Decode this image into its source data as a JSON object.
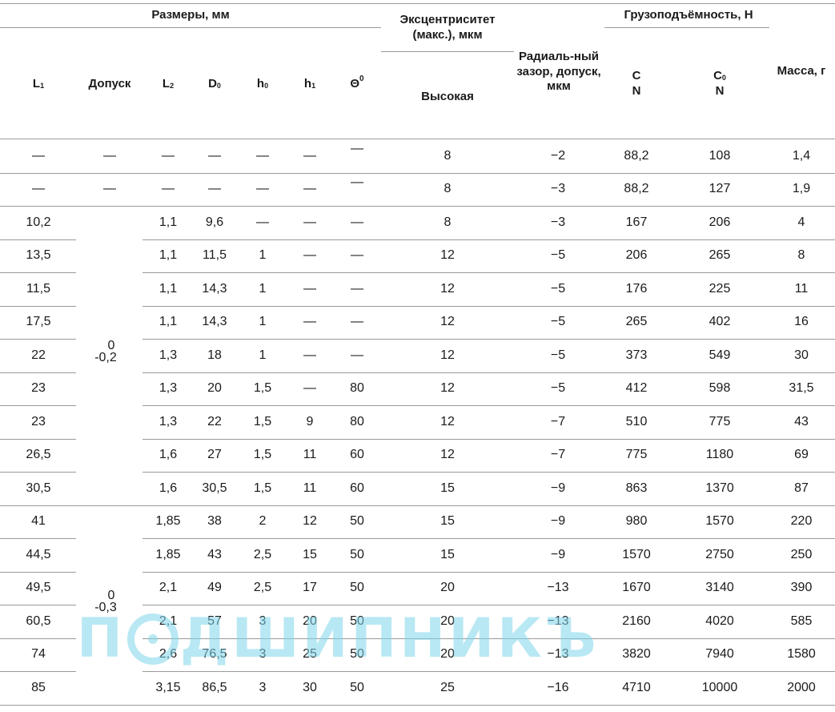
{
  "header": {
    "dimensions_group": "Размеры, мм",
    "eccentricity": "Эксцентриситет (макс.), мкм",
    "eccentricity_sub": "Высокая",
    "radial_clearance": "Радиаль-ный зазор, допуск, мкм",
    "load_group": "Грузоподъёмность, Н",
    "mass": "Масса, г",
    "cols": {
      "L1": {
        "base": "L",
        "sub": "1"
      },
      "tolerance": "Допуск",
      "L2": {
        "base": "L",
        "sub": "2"
      },
      "D0": {
        "base": "D",
        "sub": "0"
      },
      "h0": {
        "base": "h",
        "sub": "0"
      },
      "h1": {
        "base": "h",
        "sub": "1"
      },
      "theta": {
        "base": "Θ",
        "sup": "0"
      },
      "C": {
        "line1": "C",
        "line2": "N"
      },
      "C0": {
        "base": "C",
        "sub": "0",
        "line2": "N"
      }
    }
  },
  "tolerance_groups": [
    {
      "upper": "0",
      "lower": "-0,2"
    },
    {
      "upper": "0",
      "lower": "-0,3"
    }
  ],
  "rows": [
    {
      "L1": "—",
      "tol": "—",
      "L2": "—",
      "D0": "—",
      "h0": "—",
      "h1": "—",
      "theta": "—",
      "ecc": "8",
      "rad": "−2",
      "C": "88,2",
      "C0": "108",
      "mass": "1,4"
    },
    {
      "L1": "—",
      "tol": "—",
      "L2": "—",
      "D0": "—",
      "h0": "—",
      "h1": "—",
      "theta": "—",
      "ecc": "8",
      "rad": "−3",
      "C": "88,2",
      "C0": "127",
      "mass": "1,9"
    },
    {
      "L1": "10,2",
      "L2": "1,1",
      "D0": "9,6",
      "h0": "—",
      "h1": "—",
      "theta": "—",
      "ecc": "8",
      "rad": "−3",
      "C": "167",
      "C0": "206",
      "mass": "4"
    },
    {
      "L1": "13,5",
      "L2": "1,1",
      "D0": "11,5",
      "h0": "1",
      "h1": "—",
      "theta": "—",
      "ecc": "12",
      "rad": "−5",
      "C": "206",
      "C0": "265",
      "mass": "8"
    },
    {
      "L1": "11,5",
      "L2": "1,1",
      "D0": "14,3",
      "h0": "1",
      "h1": "—",
      "theta": "—",
      "ecc": "12",
      "rad": "−5",
      "C": "176",
      "C0": "225",
      "mass": "11"
    },
    {
      "L1": "17,5",
      "L2": "1,1",
      "D0": "14,3",
      "h0": "1",
      "h1": "—",
      "theta": "—",
      "ecc": "12",
      "rad": "−5",
      "C": "265",
      "C0": "402",
      "mass": "16"
    },
    {
      "L1": "22",
      "L2": "1,3",
      "D0": "18",
      "h0": "1",
      "h1": "—",
      "theta": "—",
      "ecc": "12",
      "rad": "−5",
      "C": "373",
      "C0": "549",
      "mass": "30"
    },
    {
      "L1": "23",
      "L2": "1,3",
      "D0": "20",
      "h0": "1,5",
      "h1": "—",
      "theta": "80",
      "ecc": "12",
      "rad": "−5",
      "C": "412",
      "C0": "598",
      "mass": "31,5"
    },
    {
      "L1": "23",
      "L2": "1,3",
      "D0": "22",
      "h0": "1,5",
      "h1": "9",
      "theta": "80",
      "ecc": "12",
      "rad": "−7",
      "C": "510",
      "C0": "775",
      "mass": "43"
    },
    {
      "L1": "26,5",
      "L2": "1,6",
      "D0": "27",
      "h0": "1,5",
      "h1": "11",
      "theta": "60",
      "ecc": "12",
      "rad": "−7",
      "C": "775",
      "C0": "1180",
      "mass": "69"
    },
    {
      "L1": "30,5",
      "L2": "1,6",
      "D0": "30,5",
      "h0": "1,5",
      "h1": "11",
      "theta": "60",
      "ecc": "15",
      "rad": "−9",
      "C": "863",
      "C0": "1370",
      "mass": "87"
    },
    {
      "L1": "41",
      "L2": "1,85",
      "D0": "38",
      "h0": "2",
      "h1": "12",
      "theta": "50",
      "ecc": "15",
      "rad": "−9",
      "C": "980",
      "C0": "1570",
      "mass": "220"
    },
    {
      "L1": "44,5",
      "L2": "1,85",
      "D0": "43",
      "h0": "2,5",
      "h1": "15",
      "theta": "50",
      "ecc": "15",
      "rad": "−9",
      "C": "1570",
      "C0": "2750",
      "mass": "250"
    },
    {
      "L1": "49,5",
      "L2": "2,1",
      "D0": "49",
      "h0": "2,5",
      "h1": "17",
      "theta": "50",
      "ecc": "20",
      "rad": "−13",
      "C": "1670",
      "C0": "3140",
      "mass": "390"
    },
    {
      "L1": "60,5",
      "L2": "2,1",
      "D0": "57",
      "h0": "3",
      "h1": "20",
      "theta": "50",
      "ecc": "20",
      "rad": "−13",
      "C": "2160",
      "C0": "4020",
      "mass": "585"
    },
    {
      "L1": "74",
      "L2": "2,6",
      "D0": "76,5",
      "h0": "3",
      "h1": "25",
      "theta": "50",
      "ecc": "20",
      "rad": "−13",
      "C": "3820",
      "C0": "7940",
      "mass": "1580"
    },
    {
      "L1": "85",
      "L2": "3,15",
      "D0": "86,5",
      "h0": "3",
      "h1": "30",
      "theta": "50",
      "ecc": "25",
      "rad": "−16",
      "C": "4710",
      "C0": "10000",
      "mass": "2000"
    }
  ],
  "watermark": {
    "text_left": "П",
    "text_right": "ДШИПНИКЪ"
  }
}
